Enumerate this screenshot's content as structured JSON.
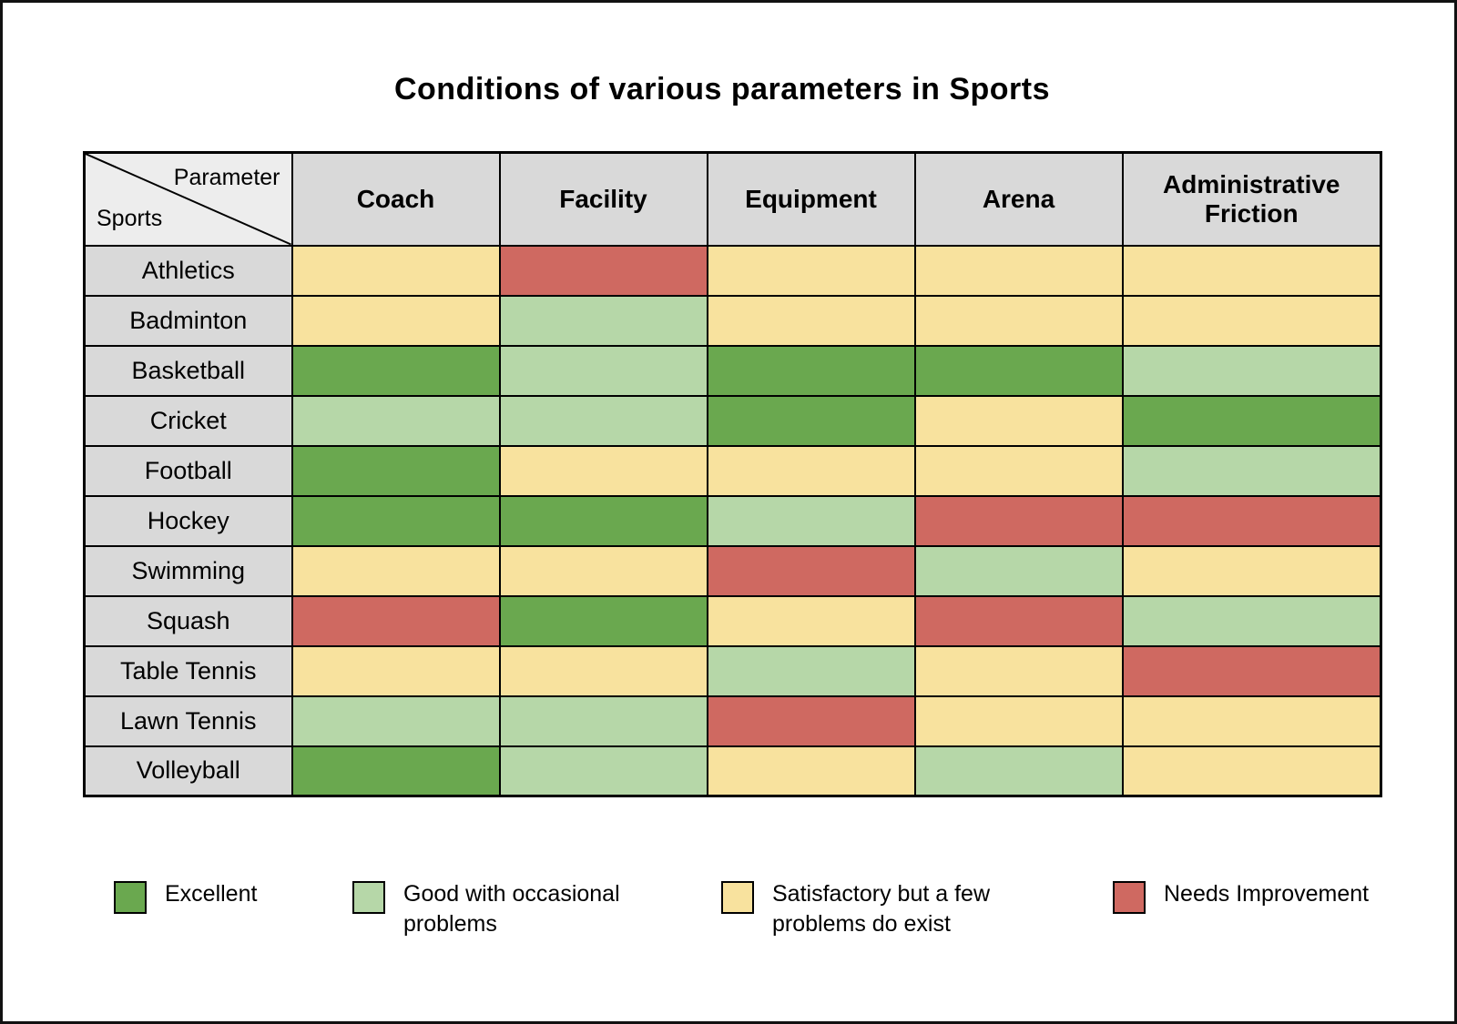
{
  "title": "Conditions of various parameters in Sports",
  "table": {
    "corner_top": "Parameter",
    "corner_bottom": "Sports",
    "columns": [
      "Coach",
      "Facility",
      "Equipment",
      "Arena",
      "Administrative Friction"
    ],
    "rows": [
      {
        "sport": "Athletics",
        "values": [
          "satisfactory",
          "needs_improvement",
          "satisfactory",
          "satisfactory",
          "satisfactory"
        ]
      },
      {
        "sport": "Badminton",
        "values": [
          "satisfactory",
          "good",
          "satisfactory",
          "satisfactory",
          "satisfactory"
        ]
      },
      {
        "sport": "Basketball",
        "values": [
          "excellent",
          "good",
          "excellent",
          "excellent",
          "good"
        ]
      },
      {
        "sport": "Cricket",
        "values": [
          "good",
          "good",
          "excellent",
          "satisfactory",
          "excellent"
        ]
      },
      {
        "sport": "Football",
        "values": [
          "excellent",
          "satisfactory",
          "satisfactory",
          "satisfactory",
          "good"
        ]
      },
      {
        "sport": "Hockey",
        "values": [
          "excellent",
          "excellent",
          "good",
          "needs_improvement",
          "needs_improvement"
        ]
      },
      {
        "sport": "Swimming",
        "values": [
          "satisfactory",
          "satisfactory",
          "needs_improvement",
          "good",
          "satisfactory"
        ]
      },
      {
        "sport": "Squash",
        "values": [
          "needs_improvement",
          "excellent",
          "satisfactory",
          "needs_improvement",
          "good"
        ]
      },
      {
        "sport": "Table Tennis",
        "values": [
          "satisfactory",
          "satisfactory",
          "good",
          "satisfactory",
          "needs_improvement"
        ]
      },
      {
        "sport": "Lawn Tennis",
        "values": [
          "good",
          "good",
          "needs_improvement",
          "satisfactory",
          "satisfactory"
        ]
      },
      {
        "sport": "Volleyball",
        "values": [
          "excellent",
          "good",
          "satisfactory",
          "good",
          "satisfactory"
        ]
      }
    ]
  },
  "legend": [
    {
      "key": "excellent",
      "label": "Excellent",
      "color": "#6AA84F"
    },
    {
      "key": "good",
      "label": "Good with occasional problems",
      "color": "#B6D7A8"
    },
    {
      "key": "satisfactory",
      "label": "Satisfactory but a few problems do exist",
      "color": "#F8E29E"
    },
    {
      "key": "needs_improvement",
      "label": "Needs Improvement",
      "color": "#CF6961"
    }
  ],
  "colors": {
    "header_gray": "#D9D9D9",
    "corner_gray": "#EDEDED",
    "border": "#000000"
  },
  "chart_data": {
    "type": "heatmap",
    "title": "Conditions of various parameters in Sports",
    "x_categories": [
      "Coach",
      "Facility",
      "Equipment",
      "Arena",
      "Administrative Friction"
    ],
    "y_categories": [
      "Athletics",
      "Badminton",
      "Basketball",
      "Cricket",
      "Football",
      "Hockey",
      "Swimming",
      "Squash",
      "Table Tennis",
      "Lawn Tennis",
      "Volleyball"
    ],
    "value_scale": {
      "excellent": "Excellent",
      "good": "Good with occasional problems",
      "satisfactory": "Satisfactory but a few problems do exist",
      "needs_improvement": "Needs Improvement"
    },
    "values": [
      [
        "satisfactory",
        "needs_improvement",
        "satisfactory",
        "satisfactory",
        "satisfactory"
      ],
      [
        "satisfactory",
        "good",
        "satisfactory",
        "satisfactory",
        "satisfactory"
      ],
      [
        "excellent",
        "good",
        "excellent",
        "excellent",
        "good"
      ],
      [
        "good",
        "good",
        "excellent",
        "satisfactory",
        "excellent"
      ],
      [
        "excellent",
        "satisfactory",
        "satisfactory",
        "satisfactory",
        "good"
      ],
      [
        "excellent",
        "excellent",
        "good",
        "needs_improvement",
        "needs_improvement"
      ],
      [
        "satisfactory",
        "satisfactory",
        "needs_improvement",
        "good",
        "satisfactory"
      ],
      [
        "needs_improvement",
        "excellent",
        "satisfactory",
        "needs_improvement",
        "good"
      ],
      [
        "satisfactory",
        "satisfactory",
        "good",
        "satisfactory",
        "needs_improvement"
      ],
      [
        "good",
        "good",
        "needs_improvement",
        "satisfactory",
        "satisfactory"
      ],
      [
        "excellent",
        "good",
        "satisfactory",
        "good",
        "satisfactory"
      ]
    ],
    "legend_position": "bottom",
    "grid": true
  }
}
